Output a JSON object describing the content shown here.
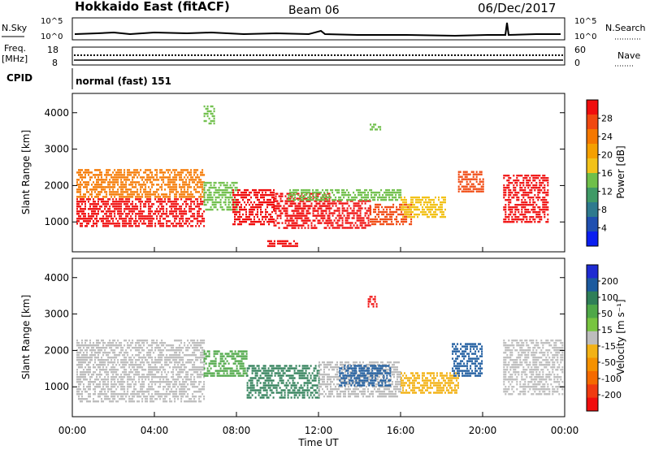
{
  "header": {
    "title": "Hokkaido East (fitACF)",
    "beam": "Beam 06",
    "date": "06/Dec/2017"
  },
  "status_panels": {
    "nsky_label": "N.Sky",
    "nsearch_label": "N.Search",
    "log_top": "10^5",
    "log_bottom": "10^0",
    "freq_label": "Freq.",
    "freq_unit": "[MHz]",
    "freq_ticks": [
      "18",
      "8"
    ],
    "nave_label": "Nave",
    "nave_ticks": [
      "60",
      "0"
    ],
    "cpid_label": "CPID",
    "cpid_value": "normal (fast) 151"
  },
  "axes": {
    "ylabel": "Slant Range [km]",
    "yticks": [
      1000,
      2000,
      3000,
      4000
    ],
    "y_range": [
      180,
      4530
    ],
    "xlabel": "Time UT",
    "xticks": [
      "00:00",
      "04:00",
      "08:00",
      "12:00",
      "16:00",
      "20:00",
      "00:00"
    ],
    "x_range_hours": [
      0,
      24
    ]
  },
  "colors": {
    "power": [
      "#0a1ef0",
      "#1f4fb0",
      "#2e7a8e",
      "#3f9a66",
      "#6fbf4a",
      "#f2c21a",
      "#f5a000",
      "#f57800",
      "#f04810",
      "#f00d0d"
    ],
    "velocity_pos": [
      "#1e2bd2",
      "#1b5a9e",
      "#2f7f58",
      "#4fa848",
      "#78c440"
    ],
    "velocity_zero": "#bdbdbd",
    "velocity_neg": [
      "#f3b215",
      "#f59100",
      "#f56a00",
      "#f03a10",
      "#f00d0d"
    ]
  },
  "chart_data": [
    {
      "type": "heatmap",
      "name": "power",
      "colorbar": {
        "label": "Power [dB]",
        "ticks": [
          "4",
          "8",
          "12",
          "16",
          "20",
          "24",
          "28"
        ]
      },
      "x_unit": "hours UT",
      "y_unit": "km",
      "regions": [
        {
          "x": [
            0.2,
            6.4
          ],
          "y": [
            900,
            1650
          ],
          "level": 9
        },
        {
          "x": [
            0.2,
            6.4
          ],
          "y": [
            1650,
            2450
          ],
          "level": 7
        },
        {
          "x": [
            6.4,
            8.0
          ],
          "y": [
            1300,
            2100
          ],
          "level": 4
        },
        {
          "x": [
            7.8,
            9.8
          ],
          "y": [
            900,
            1900
          ],
          "level": 9
        },
        {
          "x": [
            9.8,
            12.5
          ],
          "y": [
            800,
            1800
          ],
          "level": 9
        },
        {
          "x": [
            12.5,
            14.5
          ],
          "y": [
            800,
            1600
          ],
          "level": 9
        },
        {
          "x": [
            14.5,
            16.5
          ],
          "y": [
            900,
            1500
          ],
          "level": 8
        },
        {
          "x": [
            10.5,
            16.0
          ],
          "y": [
            1600,
            1900
          ],
          "level": 4
        },
        {
          "x": [
            16.0,
            18.2
          ],
          "y": [
            1100,
            1700
          ],
          "level": 5
        },
        {
          "x": [
            18.8,
            20.0
          ],
          "y": [
            1800,
            2400
          ],
          "level": 8
        },
        {
          "x": [
            21.0,
            23.2
          ],
          "y": [
            1000,
            2300
          ],
          "level": 9
        },
        {
          "x": [
            14.5,
            15.0
          ],
          "y": [
            3500,
            3700
          ],
          "level": 4
        },
        {
          "x": [
            6.4,
            6.9
          ],
          "y": [
            3700,
            4200
          ],
          "level": 4
        },
        {
          "x": [
            9.5,
            11.0
          ],
          "y": [
            300,
            500
          ],
          "level": 9
        }
      ]
    },
    {
      "type": "heatmap",
      "name": "velocity",
      "colorbar": {
        "label": "Velocity [m s⁻¹]",
        "ticks": [
          "200",
          "100",
          "50",
          "15",
          "-15",
          "-50",
          "-100",
          "-200"
        ]
      },
      "x_unit": "hours UT",
      "y_unit": "km",
      "regions": [
        {
          "x": [
            0.2,
            6.4
          ],
          "y": [
            600,
            2300
          ],
          "class": "zero"
        },
        {
          "x": [
            6.4,
            8.5
          ],
          "y": [
            1300,
            2000
          ],
          "class": "pos2"
        },
        {
          "x": [
            8.5,
            12.0
          ],
          "y": [
            700,
            1600
          ],
          "class": "pos3"
        },
        {
          "x": [
            12.0,
            16.0
          ],
          "y": [
            700,
            1700
          ],
          "class": "zero"
        },
        {
          "x": [
            13.0,
            15.5
          ],
          "y": [
            1000,
            1600
          ],
          "class": "pos4"
        },
        {
          "x": [
            16.0,
            18.8
          ],
          "y": [
            800,
            1400
          ],
          "class": "neg1"
        },
        {
          "x": [
            18.5,
            20.0
          ],
          "y": [
            1300,
            2200
          ],
          "class": "pos4"
        },
        {
          "x": [
            21.0,
            23.9
          ],
          "y": [
            800,
            2300
          ],
          "class": "zero"
        },
        {
          "x": [
            14.4,
            14.8
          ],
          "y": [
            3200,
            3500
          ],
          "class": "neg5"
        }
      ]
    }
  ]
}
